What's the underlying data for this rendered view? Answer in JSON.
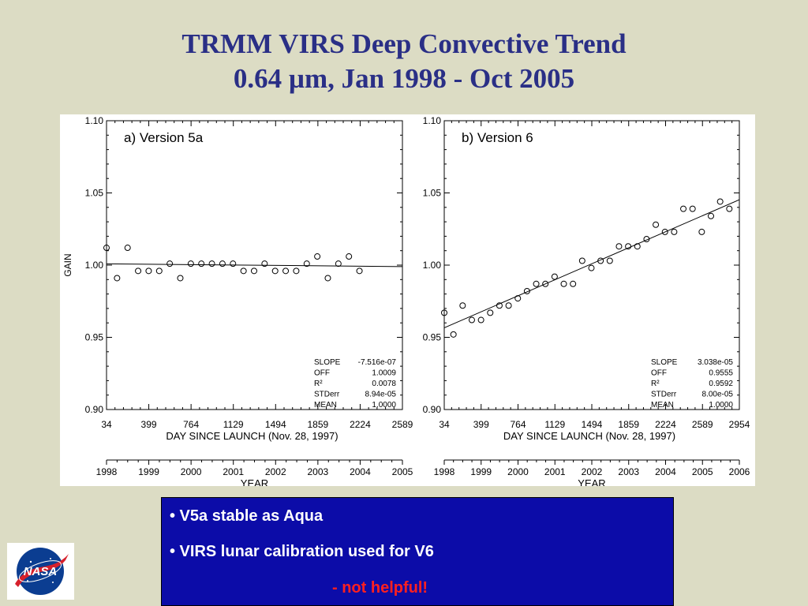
{
  "title": {
    "line1": "TRMM VIRS Deep Convective Trend",
    "line2": "0.64 µm, Jan 1998 - Oct 2005"
  },
  "colors": {
    "background": "#dcdcc4",
    "title": "#2a2f86",
    "box": "#0c0ca8",
    "box_text": "#ffffff",
    "highlight": "#ff2020"
  },
  "chart_data": [
    {
      "type": "scatter",
      "panel_label": "a) Version 5a",
      "ylabel": "GAIN",
      "xlabel": "DAY SINCE LAUNCH (Nov. 28, 1997)",
      "x2label": "YEAR",
      "xlim": [
        34,
        2589
      ],
      "ylim": [
        0.9,
        1.1
      ],
      "x_ticks": [
        34,
        399,
        764,
        1129,
        1494,
        1859,
        2224,
        2589
      ],
      "y_ticks": [
        "1.10",
        "1.05",
        "1.00",
        "0.95",
        "0.90"
      ],
      "year_ticks": [
        "1998",
        "1999",
        "2000",
        "2001",
        "2002",
        "2003",
        "2004",
        "2005"
      ],
      "year_range": [
        1998,
        2005
      ],
      "points": [
        [
          34,
          1.012
        ],
        [
          125,
          0.991
        ],
        [
          216,
          1.012
        ],
        [
          307,
          0.996
        ],
        [
          398,
          0.996
        ],
        [
          489,
          0.996
        ],
        [
          580,
          1.001
        ],
        [
          671,
          0.991
        ],
        [
          762,
          1.001
        ],
        [
          853,
          1.001
        ],
        [
          944,
          1.001
        ],
        [
          1035,
          1.001
        ],
        [
          1126,
          1.001
        ],
        [
          1217,
          0.996
        ],
        [
          1308,
          0.996
        ],
        [
          1399,
          1.001
        ],
        [
          1490,
          0.996
        ],
        [
          1581,
          0.996
        ],
        [
          1672,
          0.996
        ],
        [
          1763,
          1.001
        ],
        [
          1854,
          1.006
        ],
        [
          1945,
          0.991
        ],
        [
          2036,
          1.001
        ],
        [
          2127,
          1.006
        ],
        [
          2218,
          0.996
        ]
      ],
      "fit_line": [
        [
          34,
          1.0009
        ],
        [
          2589,
          0.999
        ]
      ],
      "stats": [
        {
          "label": "SLOPE",
          "value": "-7.516e-07"
        },
        {
          "label": "OFF",
          "value": "1.0009"
        },
        {
          "label": "R²",
          "value": "0.0078"
        },
        {
          "label": "STDerr",
          "value": "8.94e-05"
        },
        {
          "label": "MEAN",
          "value": "1.0000"
        }
      ]
    },
    {
      "type": "scatter",
      "panel_label": "b) Version 6",
      "ylabel": "",
      "xlabel": "DAY SINCE LAUNCH (Nov. 28, 1997)",
      "x2label": "YEAR",
      "xlim": [
        34,
        2954
      ],
      "ylim": [
        0.9,
        1.1
      ],
      "x_ticks": [
        34,
        399,
        764,
        1129,
        1494,
        1859,
        2224,
        2589,
        2954
      ],
      "y_ticks": [
        "1.10",
        "1.05",
        "1.00",
        "0.95",
        "0.90"
      ],
      "year_ticks": [
        "1998",
        "1999",
        "2000",
        "2001",
        "2002",
        "2003",
        "2004",
        "2005",
        "2006"
      ],
      "year_range": [
        1998,
        2006
      ],
      "points": [
        [
          34,
          0.967
        ],
        [
          125,
          0.952
        ],
        [
          216,
          0.972
        ],
        [
          307,
          0.962
        ],
        [
          398,
          0.962
        ],
        [
          489,
          0.967
        ],
        [
          580,
          0.972
        ],
        [
          671,
          0.972
        ],
        [
          762,
          0.977
        ],
        [
          853,
          0.982
        ],
        [
          944,
          0.987
        ],
        [
          1035,
          0.987
        ],
        [
          1126,
          0.992
        ],
        [
          1217,
          0.987
        ],
        [
          1308,
          0.987
        ],
        [
          1399,
          1.003
        ],
        [
          1490,
          0.998
        ],
        [
          1581,
          1.003
        ],
        [
          1672,
          1.003
        ],
        [
          1763,
          1.013
        ],
        [
          1854,
          1.013
        ],
        [
          1945,
          1.013
        ],
        [
          2036,
          1.018
        ],
        [
          2127,
          1.028
        ],
        [
          2218,
          1.023
        ],
        [
          2309,
          1.023
        ],
        [
          2400,
          1.039
        ],
        [
          2491,
          1.039
        ],
        [
          2582,
          1.023
        ],
        [
          2673,
          1.034
        ],
        [
          2764,
          1.044
        ],
        [
          2855,
          1.039
        ]
      ],
      "fit_line": [
        [
          34,
          0.9566
        ],
        [
          2954,
          1.0453
        ]
      ],
      "stats": [
        {
          "label": "SLOPE",
          "value": "3.038e-05"
        },
        {
          "label": "OFF",
          "value": "0.9555"
        },
        {
          "label": "R²",
          "value": "0.9592"
        },
        {
          "label": "STDerr",
          "value": "8.00e-05"
        },
        {
          "label": "MEAN",
          "value": "1.0000"
        }
      ]
    }
  ],
  "notes": {
    "bullet1": "• V5a stable as Aqua",
    "bullet2": "• VIRS lunar calibration used for V6",
    "bullet3": "- not helpful!"
  },
  "logo": {
    "text": "NASA"
  }
}
